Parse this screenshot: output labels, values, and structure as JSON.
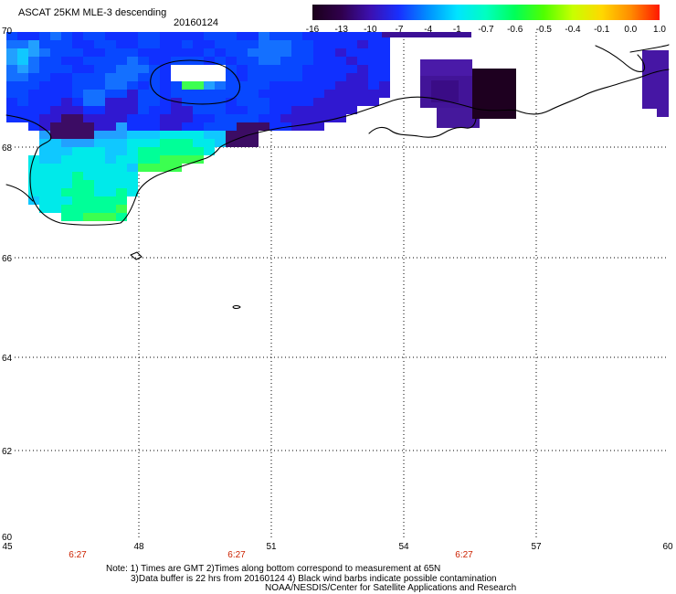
{
  "title": "ASCAT 25KM MLE-3 descending",
  "date": "20160124",
  "colorbar": {
    "labels": [
      "-16",
      "-13",
      "-10",
      "-7",
      "-4",
      "-1",
      "-0.7",
      "-0.6",
      "-0.5",
      "-0.4",
      "-0.1",
      "0.0",
      "1.0"
    ],
    "colors": [
      "#1a001a",
      "#30004c",
      "#3c10b0",
      "#1830ff",
      "#0090ff",
      "#00e4ff",
      "#00ffc0",
      "#00ff58",
      "#50ff00",
      "#c8ff00",
      "#ffd800",
      "#ff8c00",
      "#ff1800"
    ]
  },
  "map": {
    "lat_labels": [
      "70",
      "68",
      "66",
      "64",
      "62",
      "60"
    ],
    "lon_labels": [
      "45",
      "48",
      "51",
      "54",
      "57",
      "60"
    ],
    "time_labels": [
      "6:27",
      "6:27",
      "6:27"
    ],
    "time_color": "#cc2200",
    "coastline_color": "#000000"
  },
  "notes": [
    "Note: 1) Times are GMT 2)Times along bottom correspond to measurement at 65N",
    "3)Data buffer is 22 hrs from 20160124 4) Black wind barbs indicate possible contamination",
    "NOAA/NESDIS/Center for Satellite Applications and Research"
  ]
}
